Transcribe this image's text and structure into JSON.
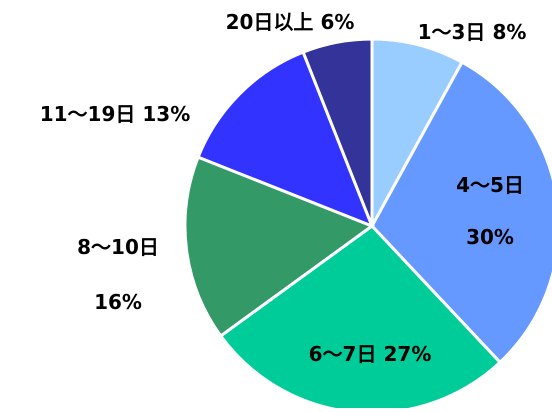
{
  "chart_data": {
    "type": "pie",
    "categories": [
      "1〜3日",
      "4〜5日",
      "6〜7日",
      "8〜10日",
      "11〜19日",
      "20日以上"
    ],
    "values": [
      8,
      30,
      27,
      16,
      13,
      6
    ],
    "value_labels": [
      "8%",
      "30%",
      "27%",
      "16%",
      "13%",
      "6%"
    ],
    "colors": [
      "#99ccff",
      "#6699ff",
      "#00cc99",
      "#339966",
      "#3333ff",
      "#333399"
    ]
  }
}
